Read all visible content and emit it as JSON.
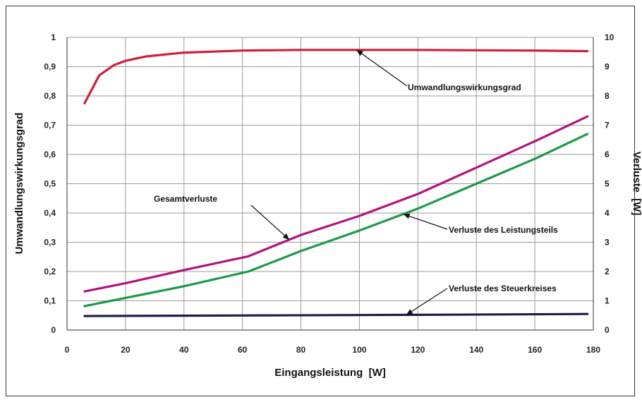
{
  "chart_data": {
    "type": "line",
    "xlabel": "Eingangsleistung  [W]",
    "ylabel_left": "Umwandlungswirkungsgrad",
    "ylabel_right": "Verluste  [W]",
    "xlim": [
      0,
      180
    ],
    "ylim_left": [
      0,
      1
    ],
    "ylim_right": [
      0,
      10
    ],
    "x_ticks": [
      0,
      20,
      40,
      60,
      80,
      100,
      120,
      140,
      160,
      180
    ],
    "x_tick_labels": [
      "0",
      "20",
      "40",
      "60",
      "80",
      "100",
      "120",
      "140",
      "160",
      "180"
    ],
    "y_left_ticks": [
      0,
      0.1,
      0.2,
      0.3,
      0.4,
      0.5,
      0.6,
      0.7,
      0.8,
      0.9,
      1
    ],
    "y_left_tick_labels": [
      "0",
      "0,1",
      "0,2",
      "0,3",
      "0,4",
      "0,5",
      "0,6",
      "0,7",
      "0,8",
      "0,9",
      "1"
    ],
    "y_right_ticks": [
      0,
      1,
      2,
      3,
      4,
      5,
      6,
      7,
      8,
      9,
      10
    ],
    "y_right_tick_labels": [
      "0",
      "1",
      "2",
      "3",
      "4",
      "5",
      "6",
      "7",
      "8",
      "9",
      "10"
    ],
    "grid": true,
    "series": [
      {
        "name": "Umwandlungswirkungsgrad",
        "axis": "left",
        "color": "#d01f3c",
        "x": [
          6,
          11,
          16,
          20,
          27,
          40,
          60,
          80,
          100,
          120,
          140,
          160,
          178
        ],
        "y": [
          0.775,
          0.87,
          0.905,
          0.92,
          0.935,
          0.948,
          0.955,
          0.957,
          0.957,
          0.957,
          0.956,
          0.955,
          0.953
        ]
      },
      {
        "name": "Gesamtverluste",
        "axis": "right",
        "color": "#b0147c",
        "x": [
          6,
          20,
          40,
          62,
          80,
          100,
          120,
          140,
          160,
          178
        ],
        "y": [
          1.32,
          1.6,
          2.05,
          2.52,
          3.25,
          3.9,
          4.65,
          5.55,
          6.45,
          7.3
        ]
      },
      {
        "name": "Verluste des Leistungsteils",
        "axis": "right",
        "color": "#1a9a4a",
        "x": [
          6,
          20,
          40,
          62,
          80,
          100,
          120,
          140,
          160,
          178
        ],
        "y": [
          0.82,
          1.1,
          1.5,
          2.0,
          2.7,
          3.4,
          4.15,
          5.0,
          5.85,
          6.7
        ]
      },
      {
        "name": "Verluste des Steuerkreises",
        "axis": "right",
        "color": "#1c1c4e",
        "x": [
          6,
          60,
          120,
          178
        ],
        "y": [
          0.48,
          0.5,
          0.52,
          0.55
        ]
      }
    ],
    "annotations": [
      {
        "text": "Umwandlungswirkungsgrad",
        "target_series": 0,
        "target_x": 99
      },
      {
        "text": "Gesamtverluste",
        "target_series": 1,
        "target_x": 76
      },
      {
        "text": "Verluste des Leistungsteils",
        "target_series": 2,
        "target_x": 115
      },
      {
        "text": "Verluste des Steuerkreises",
        "target_series": 3,
        "target_x": 116
      }
    ]
  }
}
